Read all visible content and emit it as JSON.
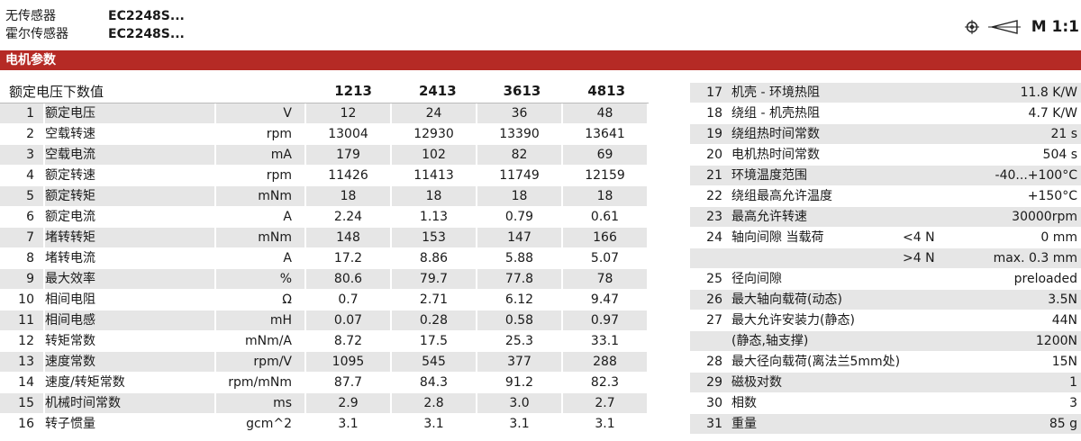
{
  "header": {
    "lines": [
      {
        "label": "无传感器",
        "value": "EC2248S..."
      },
      {
        "label": "霍尔传感器",
        "value": "EC2248S..."
      }
    ],
    "scale": "M 1:1"
  },
  "section_title": "电机参数",
  "left_table": {
    "title": "额定电压下数值",
    "columns": [
      "1213",
      "2413",
      "3613",
      "4813"
    ],
    "rows": [
      {
        "num": "1",
        "name": "额定电压",
        "unit": "V",
        "values": [
          "12",
          "24",
          "36",
          "48"
        ]
      },
      {
        "num": "2",
        "name": "空载转速",
        "unit": "rpm",
        "values": [
          "13004",
          "12930",
          "13390",
          "13641"
        ]
      },
      {
        "num": "3",
        "name": "空载电流",
        "unit": "mA",
        "values": [
          "179",
          "102",
          "82",
          "69"
        ]
      },
      {
        "num": "4",
        "name": "额定转速",
        "unit": "rpm",
        "values": [
          "11426",
          "11413",
          "11749",
          "12159"
        ]
      },
      {
        "num": "5",
        "name": "额定转矩",
        "unit": "mNm",
        "values": [
          "18",
          "18",
          "18",
          "18"
        ]
      },
      {
        "num": "6",
        "name": "额定电流",
        "unit": "A",
        "values": [
          "2.24",
          "1.13",
          "0.79",
          "0.61"
        ]
      },
      {
        "num": "7",
        "name": "堵转转矩",
        "unit": "mNm",
        "values": [
          "148",
          "153",
          "147",
          "166"
        ]
      },
      {
        "num": "8",
        "name": "堵转电流",
        "unit": "A",
        "values": [
          "17.2",
          "8.86",
          "5.88",
          "5.07"
        ]
      },
      {
        "num": "9",
        "name": "最大效率",
        "unit": "%",
        "values": [
          "80.6",
          "79.7",
          "77.8",
          "78"
        ]
      },
      {
        "num": "10",
        "name": "相间电阻",
        "unit": "Ω",
        "values": [
          "0.7",
          "2.71",
          "6.12",
          "9.47"
        ]
      },
      {
        "num": "11",
        "name": "相间电感",
        "unit": "mH",
        "values": [
          "0.07",
          "0.28",
          "0.58",
          "0.97"
        ]
      },
      {
        "num": "12",
        "name": "转矩常数",
        "unit": "mNm/A",
        "values": [
          "8.72",
          "17.5",
          "25.3",
          "33.1"
        ]
      },
      {
        "num": "13",
        "name": "速度常数",
        "unit": "rpm/V",
        "values": [
          "1095",
          "545",
          "377",
          "288"
        ]
      },
      {
        "num": "14",
        "name": "速度/转矩常数",
        "unit": "rpm/mNm",
        "values": [
          "87.7",
          "84.3",
          "91.2",
          "82.3"
        ]
      },
      {
        "num": "15",
        "name": "机械时间常数",
        "unit": "ms",
        "values": [
          "2.9",
          "2.8",
          "3.0",
          "2.7"
        ]
      },
      {
        "num": "16",
        "name": "转子惯量",
        "unit": "gcm^2",
        "values": [
          "3.1",
          "3.1",
          "3.1",
          "3.1"
        ]
      }
    ]
  },
  "right_table": {
    "rows": [
      {
        "num": "17",
        "name": "机壳 - 环境热阻",
        "cond": "",
        "value": "11.8 K/W"
      },
      {
        "num": "18",
        "name": "绕组 - 机壳热阻",
        "cond": "",
        "value": "4.7 K/W"
      },
      {
        "num": "19",
        "name": "绕组热时间常数",
        "cond": "",
        "value": "21 s"
      },
      {
        "num": "20",
        "name": "电机热时间常数",
        "cond": "",
        "value": "504 s"
      },
      {
        "num": "21",
        "name": "环境温度范围",
        "cond": "",
        "value": "-40...+100°C"
      },
      {
        "num": "22",
        "name": "绕组最高允许温度",
        "cond": "",
        "value": "+150°C"
      },
      {
        "num": "23",
        "name": "最高允许转速",
        "cond": "",
        "value": "30000rpm"
      },
      {
        "num": "24",
        "name": "轴向间隙 当载荷",
        "cond": "<4 N",
        "value": "0 mm"
      },
      {
        "num": "",
        "name": "",
        "cond": ">4 N",
        "value": "max. 0.3 mm"
      },
      {
        "num": "25",
        "name": "径向间隙",
        "cond": "",
        "value": "preloaded"
      },
      {
        "num": "26",
        "name": "最大轴向载荷(动态)",
        "cond": "",
        "value": "3.5N"
      },
      {
        "num": "27",
        "name": "最大允许安装力(静态)",
        "cond": "",
        "value": "44N"
      },
      {
        "num": "",
        "name": "(静态,轴支撑)",
        "cond": "",
        "value": "1200N"
      },
      {
        "num": "28",
        "name": "最大径向载荷(离法兰5mm处)",
        "cond": "",
        "value": "15N"
      },
      {
        "num": "29",
        "name": "磁极对数",
        "cond": "",
        "value": "1"
      },
      {
        "num": "30",
        "name": "相数",
        "cond": "",
        "value": "3"
      },
      {
        "num": "31",
        "name": "重量",
        "cond": "",
        "value": "85 g"
      }
    ]
  },
  "colors": {
    "accent": "#b52a25",
    "stripe": "#e6e6e6"
  }
}
